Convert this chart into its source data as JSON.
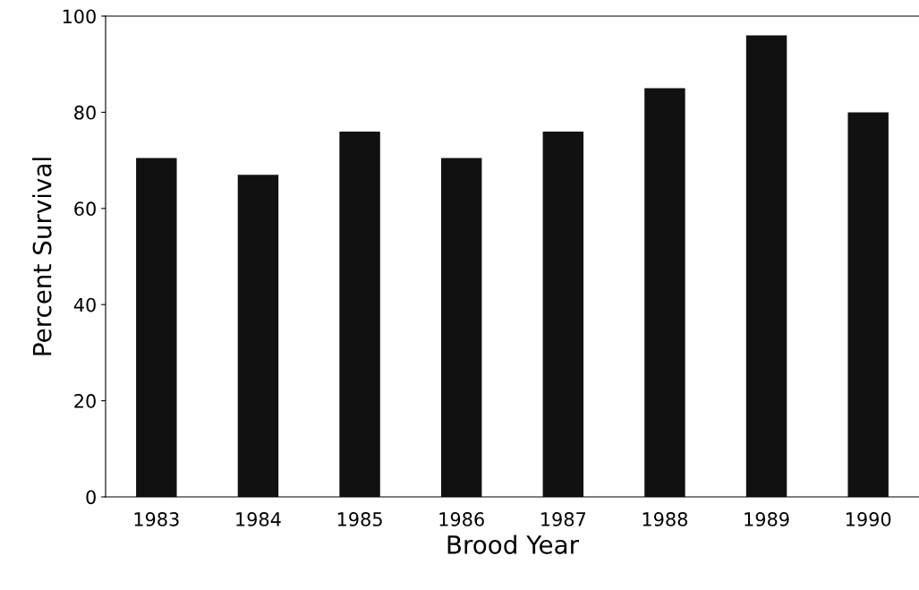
{
  "chart_data": {
    "type": "bar",
    "xlabel": "Brood Year",
    "ylabel": "Percent Survival",
    "categories": [
      "1983",
      "1984",
      "1985",
      "1986",
      "1987",
      "1988",
      "1989",
      "1990"
    ],
    "values": [
      70.5,
      67,
      76,
      70.5,
      76,
      85,
      96,
      80
    ],
    "color": "#111111",
    "ylim": [
      0,
      100
    ],
    "yticks": [
      0,
      20,
      40,
      60,
      80,
      100
    ],
    "grid": false
  }
}
